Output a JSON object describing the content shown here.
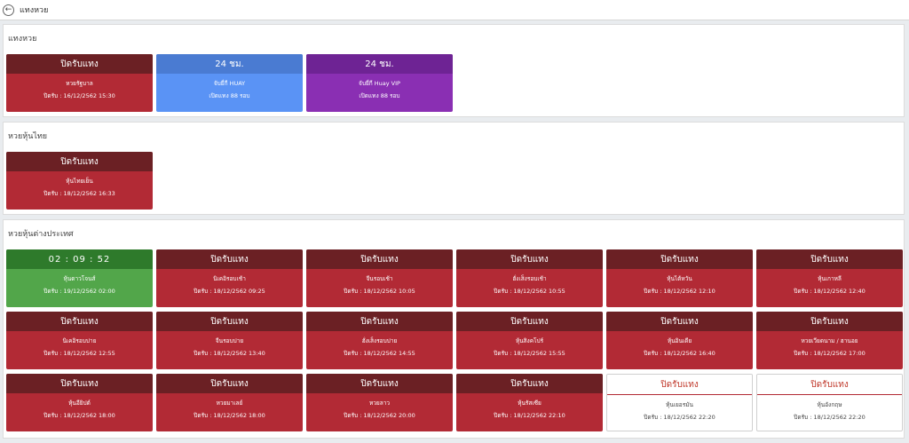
{
  "topbar": {
    "title": "แทงหวย",
    "back_icon": "←"
  },
  "sections": [
    {
      "title": "แทงหวย",
      "cards": [
        {
          "style": "red",
          "header": "ปิดรับแทง",
          "line1": "หวยรัฐบาล",
          "line2": "ปิดรับ : 16/12/2562 15:30"
        },
        {
          "style": "blue",
          "header": "24 ชม.",
          "line1": "จับยี่กี HUAY",
          "line2": "เปิดแทง 88 รอบ"
        },
        {
          "style": "purple",
          "header": "24 ชม.",
          "line1": "จับยี่กี Huay VIP",
          "line2": "เปิดแทง 88 รอบ"
        }
      ]
    },
    {
      "title": "หวยหุ้นไทย",
      "cards": [
        {
          "style": "red",
          "header": "ปิดรับแทง",
          "line1": "หุ้นไทยเย็น",
          "line2": "ปิดรับ : 18/12/2562 16:33"
        }
      ]
    },
    {
      "title": "หวยหุ้นต่างประเทศ",
      "cards": [
        {
          "style": "green",
          "header": "02 : 09 : 52",
          "line1": "หุ้นดาวโจนส์",
          "line2": "ปิดรับ : 19/12/2562 02:00"
        },
        {
          "style": "red",
          "header": "ปิดรับแทง",
          "line1": "นิเคอิรอบเช้า",
          "line2": "ปิดรับ : 18/12/2562 09:25"
        },
        {
          "style": "red",
          "header": "ปิดรับแทง",
          "line1": "จีนรอบเช้า",
          "line2": "ปิดรับ : 18/12/2562 10:05"
        },
        {
          "style": "red",
          "header": "ปิดรับแทง",
          "line1": "ฮั่งเส็งรอบเช้า",
          "line2": "ปิดรับ : 18/12/2562 10:55"
        },
        {
          "style": "red",
          "header": "ปิดรับแทง",
          "line1": "หุ้นไต้หวัน",
          "line2": "ปิดรับ : 18/12/2562 12:10"
        },
        {
          "style": "red",
          "header": "ปิดรับแทง",
          "line1": "หุ้นเกาหลี",
          "line2": "ปิดรับ : 18/12/2562 12:40"
        },
        {
          "style": "red",
          "header": "ปิดรับแทง",
          "line1": "นิเคอิรอบบ่าย",
          "line2": "ปิดรับ : 18/12/2562 12:55"
        },
        {
          "style": "red",
          "header": "ปิดรับแทง",
          "line1": "จีนรอบบ่าย",
          "line2": "ปิดรับ : 18/12/2562 13:40"
        },
        {
          "style": "red",
          "header": "ปิดรับแทง",
          "line1": "ฮั่งเส็งรอบบ่าย",
          "line2": "ปิดรับ : 18/12/2562 14:55"
        },
        {
          "style": "red",
          "header": "ปิดรับแทง",
          "line1": "หุ้นสิงคโปร์",
          "line2": "ปิดรับ : 18/12/2562 15:55"
        },
        {
          "style": "red",
          "header": "ปิดรับแทง",
          "line1": "หุ้นอินเดีย",
          "line2": "ปิดรับ : 18/12/2562 16:40"
        },
        {
          "style": "red",
          "header": "ปิดรับแทง",
          "line1": "หวยเวียดนาม / ฮานอย",
          "line2": "ปิดรับ : 18/12/2562 17:00"
        },
        {
          "style": "red",
          "header": "ปิดรับแทง",
          "line1": "หุ้นอียิปต์",
          "line2": "ปิดรับ : 18/12/2562 18:00"
        },
        {
          "style": "red",
          "header": "ปิดรับแทง",
          "line1": "หวยมาเลย์",
          "line2": "ปิดรับ : 18/12/2562 18:00"
        },
        {
          "style": "red",
          "header": "ปิดรับแทง",
          "line1": "หวยลาว",
          "line2": "ปิดรับ : 18/12/2562 20:00"
        },
        {
          "style": "red",
          "header": "ปิดรับแทง",
          "line1": "หุ้นรัสเซีย",
          "line2": "ปิดรับ : 18/12/2562 22:10"
        },
        {
          "style": "white",
          "header": "ปิดรับแทง",
          "line1": "หุ้นเยอรมัน",
          "line2": "ปิดรับ : 18/12/2562 22:20"
        },
        {
          "style": "white",
          "header": "ปิดรับแทง",
          "line1": "หุ้นอังกฤษ",
          "line2": "ปิดรับ : 18/12/2562 22:20"
        }
      ]
    }
  ]
}
